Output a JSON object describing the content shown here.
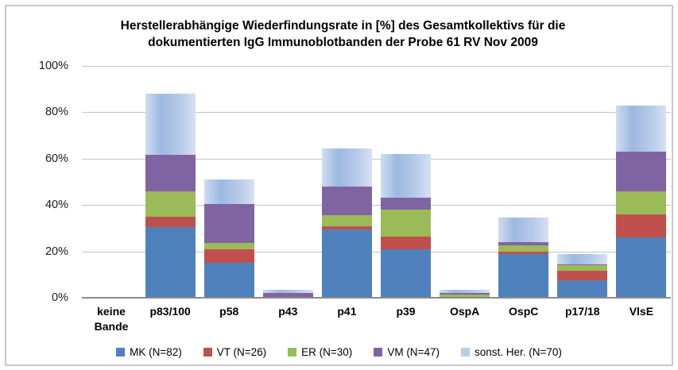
{
  "title": {
    "lines": [
      "Herstellerabhängige Wiederfindungsrate  in [%] des Gesamtkollektivs  für die",
      "dokumentierten IgG Immunoblotbanden der Probe 61 RV Nov 2009"
    ]
  },
  "chart_data": {
    "type": "bar",
    "stacked": true,
    "title": "Herstellerabhängige Wiederfindungsrate in [%] des Gesamtkollektivs für die dokumentierten IgG Immunoblotbanden der Probe 61 RV Nov 2009",
    "categories": [
      "keine Bande",
      "p83/100",
      "p58",
      "p43",
      "p41",
      "p39",
      "OspA",
      "OspC",
      "p17/18",
      "VlsE"
    ],
    "series": [
      {
        "name": "MK (N=82)",
        "color": "#4f81bd",
        "values": [
          0,
          30.5,
          15,
          0,
          29.5,
          21,
          0,
          19,
          7.5,
          26
        ]
      },
      {
        "name": "VT (N=26)",
        "color": "#c0504d",
        "values": [
          0,
          4.5,
          6,
          0,
          1.5,
          5.5,
          0,
          1,
          4,
          10
        ]
      },
      {
        "name": "ER (N=30)",
        "color": "#9bbb59",
        "values": [
          0,
          11,
          2.5,
          0,
          4.5,
          11.5,
          1.5,
          2.5,
          2.5,
          10
        ]
      },
      {
        "name": "VM (N=47)",
        "color": "#8064a2",
        "values": [
          0,
          15.5,
          17,
          2,
          12.5,
          5,
          0.5,
          1.5,
          0.5,
          17
        ]
      },
      {
        "name": "sonst. Her. (N=70)",
        "color": "#b9cde5",
        "gradient": [
          "#cfdcf1",
          "#9db8e0",
          "#b6c9e9",
          "#d6e1f3"
        ],
        "values": [
          0,
          26.5,
          10.5,
          1.5,
          16.5,
          19,
          1.5,
          10.5,
          4.5,
          20
        ]
      }
    ],
    "category_totals": [
      0,
      88,
      51,
      3.5,
      64.5,
      62,
      3.5,
      34.5,
      19,
      83
    ],
    "ylim": [
      0,
      100
    ],
    "y_ticks": [
      0,
      20,
      40,
      60,
      80,
      100
    ],
    "y_tick_labels": [
      "0%",
      "20%",
      "40%",
      "60%",
      "80%",
      "100%"
    ],
    "grid": true,
    "legend_position": "bottom"
  },
  "colors": {
    "gridline": "#c3c3c3",
    "axis_line": "#8a8a8a",
    "frame_border": "#c9c9c9"
  }
}
